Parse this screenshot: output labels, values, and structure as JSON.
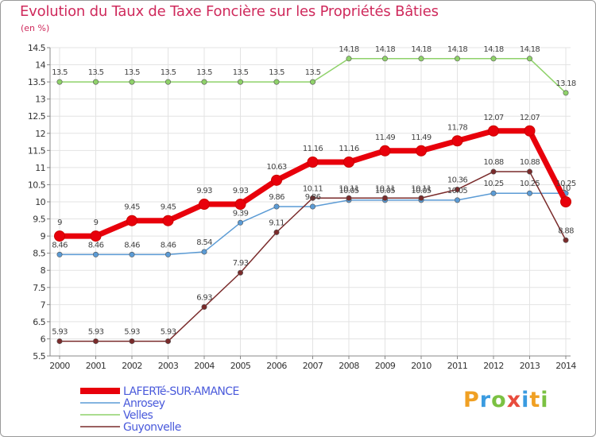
{
  "title": "Evolution du Taux de Taxe Foncière sur les Propriétés Bâties",
  "subtitle": "(en %)",
  "logo": "Proxiti",
  "chart_data": {
    "type": "line",
    "title": "Evolution du Taux de Taxe Foncière sur les Propriétés Bâties",
    "ylabel": "(en %)",
    "xlabel": "",
    "x": [
      "2000",
      "2001",
      "2002",
      "2003",
      "2004",
      "2005",
      "2006",
      "2007",
      "2008",
      "2009",
      "2010",
      "2011",
      "2012",
      "2013",
      "2014"
    ],
    "ylim": [
      5.5,
      14.5
    ],
    "yticks": [
      "5.5",
      "6",
      "6.5",
      "7",
      "7.5",
      "8",
      "8.5",
      "9",
      "9.5",
      "10",
      "10.5",
      "11",
      "11.5",
      "12",
      "12.5",
      "13",
      "13.5",
      "14",
      "14.5"
    ],
    "grid": true,
    "legend_position": "bottom-left",
    "series": [
      {
        "name": "Velles",
        "color": "#8fd26a",
        "labels": [
          "13.5",
          "13.5",
          "13.5",
          "13.5",
          "13.5",
          "13.5",
          "13.5",
          "13.5",
          "14.18",
          "14.18",
          "14.18",
          "14.18",
          "14.18",
          "14.18",
          "13.18"
        ],
        "values": [
          13.5,
          13.5,
          13.5,
          13.5,
          13.5,
          13.5,
          13.5,
          13.5,
          14.18,
          14.18,
          14.18,
          14.18,
          14.18,
          14.18,
          13.18
        ]
      },
      {
        "name": "Anrosey",
        "color": "#5b9bd5",
        "labels": [
          "8.46",
          "8.46",
          "8.46",
          "8.46",
          "8.54",
          "9.39",
          "9.86",
          "9.86",
          "10.05",
          "10.05",
          "10.05",
          "10.05",
          "10.25",
          "10.25",
          "10.25"
        ],
        "values": [
          8.46,
          8.46,
          8.46,
          8.46,
          8.54,
          9.39,
          9.86,
          9.86,
          10.05,
          10.05,
          10.05,
          10.05,
          10.25,
          10.25,
          10.25
        ]
      },
      {
        "name": "Guyonvelle",
        "color": "#7a2b2b",
        "labels": [
          "5.93",
          "5.93",
          "5.93",
          "5.93",
          "6.93",
          "7.93",
          "9.11",
          "10.11",
          "10.11",
          "10.11",
          "10.11",
          "10.36",
          "10.88",
          "10.88",
          "8.88"
        ],
        "values": [
          5.93,
          5.93,
          5.93,
          5.93,
          6.93,
          7.93,
          9.11,
          10.11,
          10.11,
          10.11,
          10.11,
          10.36,
          10.88,
          10.88,
          8.88
        ]
      },
      {
        "name": "LAFERTé-SUR-AMANCE",
        "color": "#e8000b",
        "labels": [
          "9",
          "9",
          "9.45",
          "9.45",
          "9.93",
          "9.93",
          "10.63",
          "11.16",
          "11.16",
          "11.49",
          "11.49",
          "11.78",
          "12.07",
          "12.07",
          "10"
        ],
        "values": [
          9,
          9,
          9.45,
          9.45,
          9.93,
          9.93,
          10.63,
          11.16,
          11.16,
          11.49,
          11.49,
          11.78,
          12.07,
          12.07,
          10
        ]
      }
    ],
    "legend": [
      "LAFERTé-SUR-AMANCE",
      "Anrosey",
      "Velles",
      "Guyonvelle"
    ]
  }
}
